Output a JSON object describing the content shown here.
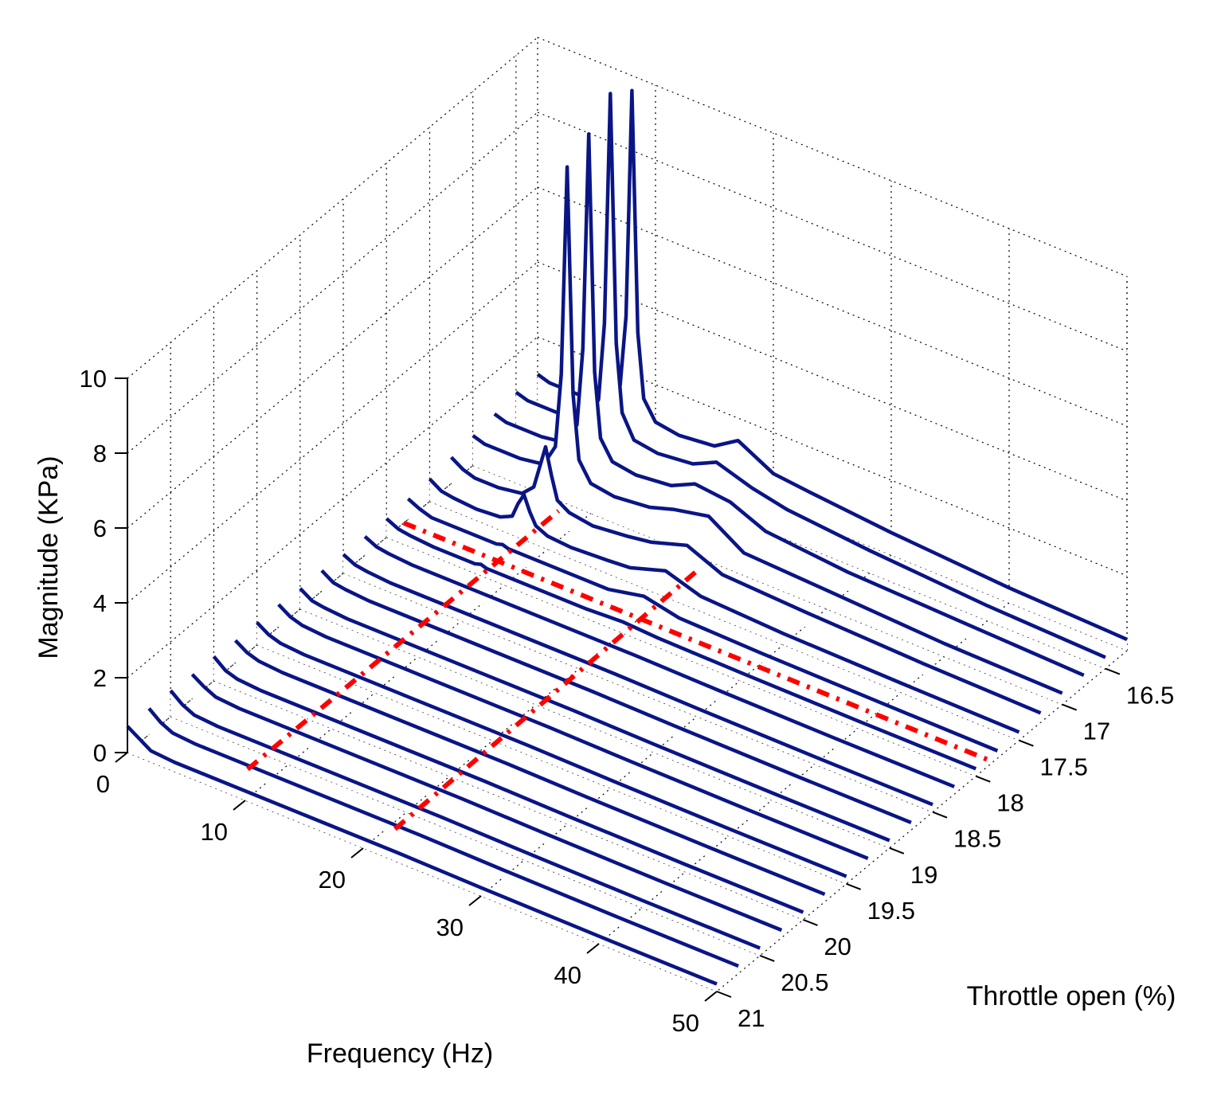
{
  "chart_data": {
    "type": "waterfall3d",
    "xlabel": "Frequency (Hz)",
    "ylabel": "Throttle open (%)",
    "zlabel": "Magnitude (KPa)",
    "xlim": [
      0,
      50
    ],
    "xticks": [
      0,
      10,
      20,
      30,
      40,
      50
    ],
    "ylim": [
      16.25,
      21
    ],
    "yticks": [
      16.5,
      17,
      17.5,
      18,
      18.5,
      19,
      19.5,
      20,
      20.5,
      21
    ],
    "zlim": [
      0,
      10
    ],
    "zticks": [
      0,
      2,
      4,
      6,
      8,
      10
    ],
    "grid": true,
    "color": "#0a1585",
    "guide_color": "#ff0000",
    "x": [
      0,
      1,
      2,
      4,
      6,
      7,
      7.5,
      8,
      8.5,
      9,
      10,
      12,
      15,
      17,
      20,
      23,
      30,
      40,
      50
    ],
    "series": [
      {
        "throttle": 16.25,
        "values": [
          1.0,
          0.9,
          0.9,
          0.9,
          1.0,
          1.6,
          3.5,
          9.6,
          3.2,
          1.5,
          1.0,
          0.9,
          1.0,
          1.4,
          0.9,
          0.8,
          0.6,
          0.4,
          0.3
        ]
      },
      {
        "throttle": 16.5,
        "values": [
          1.0,
          0.9,
          0.9,
          0.9,
          1.0,
          1.7,
          3.8,
          10,
          3.4,
          1.6,
          1.0,
          0.9,
          1.0,
          1.3,
          1.0,
          0.8,
          0.6,
          0.4,
          0.3
        ]
      },
      {
        "throttle": 16.75,
        "values": [
          0.9,
          0.8,
          0.8,
          0.8,
          0.9,
          1.5,
          3.6,
          9.4,
          3.1,
          1.4,
          0.9,
          0.8,
          0.9,
          1.2,
          1.1,
          0.7,
          0.5,
          0.4,
          0.3
        ]
      },
      {
        "throttle": 17,
        "values": [
          0.8,
          0.7,
          0.7,
          0.7,
          0.8,
          1.4,
          3.4,
          9.0,
          3.0,
          1.3,
          0.8,
          0.7,
          0.8,
          1.0,
          1.2,
          0.6,
          0.5,
          0.35,
          0.3
        ]
      },
      {
        "throttle": 17.25,
        "values": [
          0.7,
          0.5,
          0.4,
          0.4,
          0.5,
          0.8,
          1.4,
          2.0,
          1.3,
          0.7,
          0.5,
          0.4,
          0.5,
          0.6,
          0.9,
          0.5,
          0.4,
          0.3,
          0.25
        ]
      },
      {
        "throttle": 17.5,
        "values": [
          0.6,
          0.4,
          0.35,
          0.3,
          0.35,
          0.5,
          0.9,
          1.2,
          0.8,
          0.5,
          0.35,
          0.3,
          0.35,
          0.4,
          0.7,
          0.4,
          0.3,
          0.25,
          0.22
        ]
      },
      {
        "throttle": 17.75,
        "values": [
          0.55,
          0.4,
          0.3,
          0.3,
          0.3,
          0.3,
          0.3,
          0.35,
          0.3,
          0.3,
          0.3,
          0.3,
          0.3,
          0.3,
          0.5,
          0.3,
          0.25,
          0.22,
          0.2
        ]
      },
      {
        "throttle": 18,
        "values": [
          0.5,
          0.35,
          0.3,
          0.25,
          0.25,
          0.25,
          0.25,
          0.3,
          0.25,
          0.25,
          0.25,
          0.25,
          0.25,
          0.25,
          0.3,
          0.25,
          0.22,
          0.2,
          0.2
        ]
      },
      {
        "throttle": 18.25,
        "values": [
          0.5,
          0.35,
          0.3,
          0.25,
          0.25,
          0.25,
          0.25,
          0.25,
          0.25,
          0.25,
          0.25,
          0.25,
          0.25,
          0.25,
          0.25,
          0.25,
          0.22,
          0.2,
          0.2
        ]
      },
      {
        "throttle": 18.5,
        "values": [
          0.5,
          0.35,
          0.3,
          0.25,
          0.25,
          0.25,
          0.25,
          0.25,
          0.25,
          0.25,
          0.25,
          0.25,
          0.25,
          0.25,
          0.25,
          0.25,
          0.22,
          0.2,
          0.2
        ]
      },
      {
        "throttle": 18.75,
        "values": [
          0.55,
          0.35,
          0.3,
          0.25,
          0.25,
          0.25,
          0.25,
          0.25,
          0.25,
          0.25,
          0.25,
          0.25,
          0.25,
          0.25,
          0.25,
          0.25,
          0.22,
          0.2,
          0.2
        ]
      },
      {
        "throttle": 19,
        "values": [
          0.55,
          0.35,
          0.3,
          0.25,
          0.25,
          0.25,
          0.25,
          0.25,
          0.25,
          0.25,
          0.25,
          0.25,
          0.25,
          0.25,
          0.25,
          0.25,
          0.22,
          0.2,
          0.2
        ]
      },
      {
        "throttle": 19.25,
        "values": [
          0.6,
          0.4,
          0.3,
          0.25,
          0.25,
          0.25,
          0.25,
          0.25,
          0.25,
          0.25,
          0.25,
          0.25,
          0.25,
          0.25,
          0.25,
          0.25,
          0.22,
          0.2,
          0.2
        ]
      },
      {
        "throttle": 19.5,
        "values": [
          0.6,
          0.4,
          0.3,
          0.25,
          0.25,
          0.25,
          0.25,
          0.25,
          0.25,
          0.25,
          0.25,
          0.25,
          0.25,
          0.25,
          0.25,
          0.25,
          0.22,
          0.2,
          0.2
        ]
      },
      {
        "throttle": 19.75,
        "values": [
          0.6,
          0.4,
          0.3,
          0.25,
          0.25,
          0.25,
          0.25,
          0.25,
          0.25,
          0.25,
          0.25,
          0.25,
          0.25,
          0.25,
          0.25,
          0.25,
          0.22,
          0.2,
          0.2
        ]
      },
      {
        "throttle": 20,
        "values": [
          0.65,
          0.4,
          0.3,
          0.25,
          0.25,
          0.25,
          0.25,
          0.25,
          0.25,
          0.25,
          0.25,
          0.25,
          0.25,
          0.25,
          0.25,
          0.25,
          0.22,
          0.2,
          0.2
        ]
      },
      {
        "throttle": 20.25,
        "values": [
          0.65,
          0.45,
          0.3,
          0.25,
          0.25,
          0.25,
          0.25,
          0.25,
          0.25,
          0.25,
          0.25,
          0.25,
          0.25,
          0.25,
          0.25,
          0.25,
          0.22,
          0.2,
          0.2
        ]
      },
      {
        "throttle": 20.5,
        "values": [
          0.7,
          0.45,
          0.3,
          0.25,
          0.25,
          0.25,
          0.25,
          0.25,
          0.25,
          0.25,
          0.25,
          0.25,
          0.25,
          0.25,
          0.25,
          0.25,
          0.22,
          0.2,
          0.2
        ]
      },
      {
        "throttle": 20.75,
        "values": [
          0.7,
          0.45,
          0.3,
          0.25,
          0.25,
          0.25,
          0.25,
          0.25,
          0.25,
          0.25,
          0.25,
          0.25,
          0.25,
          0.25,
          0.25,
          0.25,
          0.22,
          0.2,
          0.2
        ]
      },
      {
        "throttle": 21,
        "values": [
          0.7,
          0.5,
          0.3,
          0.25,
          0.25,
          0.25,
          0.25,
          0.25,
          0.25,
          0.25,
          0.25,
          0.25,
          0.25,
          0.25,
          0.25,
          0.25,
          0.22,
          0.2,
          0.2
        ]
      }
    ],
    "guides": [
      {
        "x": [
          8,
          8
        ],
        "y": [
          20.7,
          17.1
        ]
      },
      {
        "x": [
          20.5,
          20
        ],
        "y": [
          20.7,
          17.1
        ]
      },
      {
        "x": [
          0,
          50
        ],
        "y": [
          17.8,
          17.8
        ]
      }
    ]
  }
}
